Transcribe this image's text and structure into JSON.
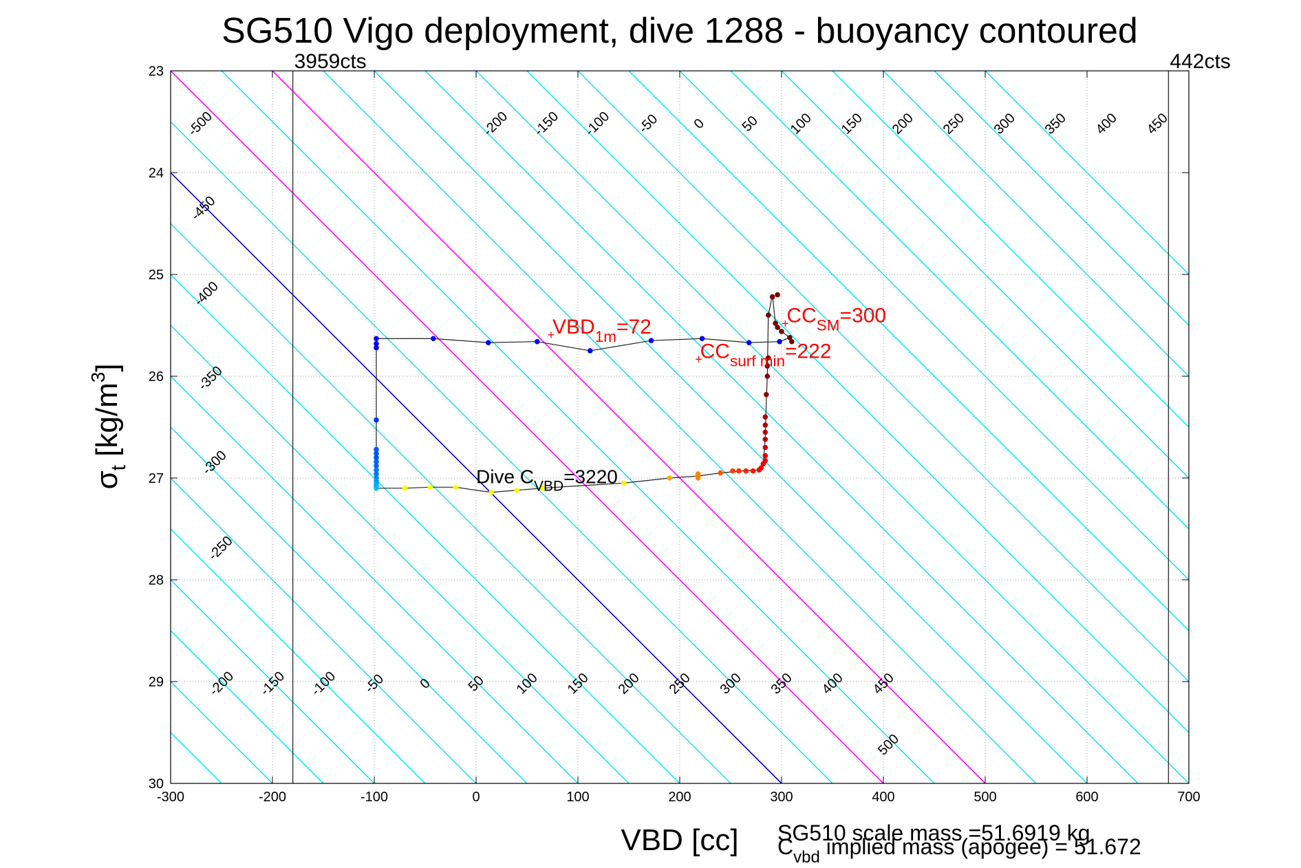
{
  "chart_data": {
    "type": "scatter",
    "title": "SG510 Vigo deployment, dive 1288 - buoyancy contoured",
    "xlabel": "VBD [cc]",
    "ylabel": {
      "main": "σ",
      "sub": "t",
      "unit": " [kg/m",
      "sup": "3",
      "close": "]"
    },
    "xlim": [
      -300,
      700
    ],
    "ylim": [
      23,
      30
    ],
    "y_reversed": true,
    "grid": "dotted",
    "x_ticks": [
      "-300",
      "-200",
      "-100",
      "0",
      "100",
      "200",
      "300",
      "400",
      "500",
      "600",
      "700"
    ],
    "y_ticks": [
      "23",
      "24",
      "25",
      "26",
      "27",
      "28",
      "29",
      "30"
    ],
    "vbd_limits": [
      {
        "x": -180,
        "label": "3959cts"
      },
      {
        "x": 680,
        "label": "442cts"
      }
    ],
    "contours": {
      "slope_cc_per_unit": 100,
      "levels": [
        -500,
        -450,
        -400,
        -350,
        -300,
        -250,
        -200,
        -150,
        -100,
        -50,
        0,
        50,
        100,
        150,
        200,
        250,
        300,
        350,
        400,
        450,
        500
      ],
      "highlight_blue": [
        0
      ],
      "highlight_magenta": [
        100,
        200
      ],
      "color_default": "#00e5ee",
      "color_blue": "#0000dd",
      "color_magenta": "#ff00ff",
      "labels_top": [
        {
          "level": "-500",
          "x": -268,
          "y": 23.55
        },
        {
          "level": "-450",
          "x": -265,
          "y": 24.38
        },
        {
          "level": "-400",
          "x": -262,
          "y": 25.22
        },
        {
          "level": "-350",
          "x": -258,
          "y": 26.05
        },
        {
          "level": "-300",
          "x": -254,
          "y": 26.88
        },
        {
          "level": "-250",
          "x": -248,
          "y": 27.72
        },
        {
          "level": "-200",
          "x": 22,
          "y": 23.55
        },
        {
          "level": "-150",
          "x": 72,
          "y": 23.55
        },
        {
          "level": "-100",
          "x": 122,
          "y": 23.55
        },
        {
          "level": "-50",
          "x": 172,
          "y": 23.55
        },
        {
          "level": "0",
          "x": 222,
          "y": 23.55
        },
        {
          "level": "50",
          "x": 272,
          "y": 23.55
        },
        {
          "level": "100",
          "x": 322,
          "y": 23.55
        },
        {
          "level": "150",
          "x": 372,
          "y": 23.55
        },
        {
          "level": "200",
          "x": 422,
          "y": 23.55
        },
        {
          "level": "250",
          "x": 472,
          "y": 23.55
        },
        {
          "level": "300",
          "x": 522,
          "y": 23.55
        },
        {
          "level": "350",
          "x": 572,
          "y": 23.55
        },
        {
          "level": "400",
          "x": 622,
          "y": 23.55
        },
        {
          "level": "450",
          "x": 672,
          "y": 23.55
        }
      ],
      "labels_bottom": [
        {
          "level": "-200",
          "x": -247,
          "y": 29.05
        },
        {
          "level": "-150",
          "x": -197,
          "y": 29.05
        },
        {
          "level": "-100",
          "x": -147,
          "y": 29.05
        },
        {
          "level": "-50",
          "x": -97,
          "y": 29.05
        },
        {
          "level": "0",
          "x": -47,
          "y": 29.05
        },
        {
          "level": "50",
          "x": 3,
          "y": 29.05
        },
        {
          "level": "100",
          "x": 53,
          "y": 29.05
        },
        {
          "level": "150",
          "x": 103,
          "y": 29.05
        },
        {
          "level": "200",
          "x": 153,
          "y": 29.05
        },
        {
          "level": "250",
          "x": 203,
          "y": 29.05
        },
        {
          "level": "300",
          "x": 253,
          "y": 29.05
        },
        {
          "level": "350",
          "x": 303,
          "y": 29.05
        },
        {
          "level": "400",
          "x": 353,
          "y": 29.05
        },
        {
          "level": "450",
          "x": 403,
          "y": 29.05
        },
        {
          "level": "500",
          "x": 408,
          "y": 29.65
        }
      ]
    },
    "profile_line": [
      [
        -98,
        25.63
      ],
      [
        -98,
        27.1
      ],
      [
        -70,
        27.1
      ],
      [
        -45,
        27.09
      ],
      [
        -20,
        27.09
      ],
      [
        0,
        27.12
      ],
      [
        15,
        27.14
      ],
      [
        40,
        27.12
      ],
      [
        65,
        27.1
      ],
      [
        95,
        27.08
      ],
      [
        145,
        27.05
      ],
      [
        190,
        27.0
      ],
      [
        218,
        26.98
      ],
      [
        240,
        26.95
      ],
      [
        262,
        26.93
      ],
      [
        278,
        26.92
      ],
      [
        282,
        26.88
      ],
      [
        284,
        26.6
      ],
      [
        285,
        26.25
      ],
      [
        286,
        26.0
      ],
      [
        287,
        25.4
      ],
      [
        291,
        25.2
      ],
      [
        294,
        25.48
      ],
      [
        300,
        25.56
      ],
      [
        308,
        25.62
      ],
      [
        298,
        25.66
      ],
      [
        268,
        25.67
      ],
      [
        222,
        25.63
      ],
      [
        172,
        25.65
      ],
      [
        112,
        25.75
      ],
      [
        60,
        25.66
      ],
      [
        12,
        25.67
      ],
      [
        -42,
        25.63
      ],
      [
        -98,
        25.63
      ]
    ],
    "points": [
      {
        "x": -98,
        "y": 25.63,
        "color": "#0000ff"
      },
      {
        "x": -98,
        "y": 25.68,
        "color": "#0000ff"
      },
      {
        "x": -98,
        "y": 25.72,
        "color": "#0000ff"
      },
      {
        "x": -42,
        "y": 25.63,
        "color": "#0000ff"
      },
      {
        "x": 12,
        "y": 25.67,
        "color": "#0000ff"
      },
      {
        "x": 60,
        "y": 25.66,
        "color": "#0000ff"
      },
      {
        "x": 112,
        "y": 25.75,
        "color": "#0000ff"
      },
      {
        "x": 172,
        "y": 25.65,
        "color": "#0000ff"
      },
      {
        "x": 222,
        "y": 25.63,
        "color": "#0000ff"
      },
      {
        "x": 268,
        "y": 25.67,
        "color": "#0000ff"
      },
      {
        "x": 298,
        "y": 25.66,
        "color": "#0000ff"
      },
      {
        "x": -98,
        "y": 26.43,
        "color": "#0033ff"
      },
      {
        "x": -98,
        "y": 26.72,
        "color": "#0055ff"
      },
      {
        "x": -98,
        "y": 26.76,
        "color": "#0055ff"
      },
      {
        "x": -98,
        "y": 26.8,
        "color": "#0055ff"
      },
      {
        "x": -98,
        "y": 26.84,
        "color": "#0066ff"
      },
      {
        "x": -98,
        "y": 26.88,
        "color": "#0066ff"
      },
      {
        "x": -98,
        "y": 26.92,
        "color": "#0077ff"
      },
      {
        "x": -98,
        "y": 26.96,
        "color": "#0077ff"
      },
      {
        "x": -98,
        "y": 27.0,
        "color": "#0088ff"
      },
      {
        "x": -98,
        "y": 27.03,
        "color": "#0099ff"
      },
      {
        "x": -98,
        "y": 27.06,
        "color": "#00aaff"
      },
      {
        "x": -98,
        "y": 27.08,
        "color": "#00aaff"
      },
      {
        "x": -98,
        "y": 27.1,
        "color": "#00bbff"
      },
      {
        "x": -70,
        "y": 27.1,
        "color": "#ffff00"
      },
      {
        "x": -45,
        "y": 27.09,
        "color": "#ffff00"
      },
      {
        "x": -20,
        "y": 27.09,
        "color": "#ffff00"
      },
      {
        "x": 15,
        "y": 27.14,
        "color": "#ffff00"
      },
      {
        "x": 40,
        "y": 27.12,
        "color": "#ffff00"
      },
      {
        "x": 65,
        "y": 27.1,
        "color": "#ffff00"
      },
      {
        "x": 145,
        "y": 27.05,
        "color": "#ffee00"
      },
      {
        "x": 190,
        "y": 27.0,
        "color": "#ffaa00"
      },
      {
        "x": 218,
        "y": 26.96,
        "color": "#ff8800"
      },
      {
        "x": 218,
        "y": 26.98,
        "color": "#ff8800"
      },
      {
        "x": 218,
        "y": 27.0,
        "color": "#ff8800"
      },
      {
        "x": 240,
        "y": 26.95,
        "color": "#ff5500"
      },
      {
        "x": 252,
        "y": 26.93,
        "color": "#ff4400"
      },
      {
        "x": 258,
        "y": 26.93,
        "color": "#ff3300"
      },
      {
        "x": 265,
        "y": 26.93,
        "color": "#ff2200"
      },
      {
        "x": 272,
        "y": 26.93,
        "color": "#ff1100"
      },
      {
        "x": 278,
        "y": 26.92,
        "color": "#ff0000"
      },
      {
        "x": 280,
        "y": 26.9,
        "color": "#ff0000"
      },
      {
        "x": 282,
        "y": 26.86,
        "color": "#ee0000"
      },
      {
        "x": 284,
        "y": 26.83,
        "color": "#ee0000"
      },
      {
        "x": 284,
        "y": 26.78,
        "color": "#dd0000"
      },
      {
        "x": 284,
        "y": 26.7,
        "color": "#cc0000"
      },
      {
        "x": 284,
        "y": 26.62,
        "color": "#bb0000"
      },
      {
        "x": 284,
        "y": 26.55,
        "color": "#bb0000"
      },
      {
        "x": 284,
        "y": 26.48,
        "color": "#aa0000"
      },
      {
        "x": 284,
        "y": 26.4,
        "color": "#aa0000"
      },
      {
        "x": 285,
        "y": 26.18,
        "color": "#990000"
      },
      {
        "x": 286,
        "y": 26.0,
        "color": "#880000"
      },
      {
        "x": 286,
        "y": 25.9,
        "color": "#880000"
      },
      {
        "x": 287,
        "y": 25.82,
        "color": "#880000"
      },
      {
        "x": 287,
        "y": 25.4,
        "color": "#770000"
      },
      {
        "x": 291,
        "y": 25.22,
        "color": "#770000"
      },
      {
        "x": 296,
        "y": 25.2,
        "color": "#770000"
      },
      {
        "x": 294,
        "y": 25.48,
        "color": "#770000"
      },
      {
        "x": 296,
        "y": 25.52,
        "color": "#770000"
      },
      {
        "x": 300,
        "y": 25.56,
        "color": "#770000"
      },
      {
        "x": 308,
        "y": 25.62,
        "color": "#770000"
      },
      {
        "x": 310,
        "y": 25.66,
        "color": "#770000"
      }
    ],
    "annotations": [
      {
        "color": "red",
        "x": 75,
        "y": 25.58,
        "size": 30,
        "main": "VBD",
        "sub": "1m",
        "rest": "=72"
      },
      {
        "color": "red",
        "x": 305,
        "y": 25.47,
        "size": 30,
        "main": "CC",
        "sub": "SM",
        "rest": "=300"
      },
      {
        "color": "red",
        "x": 220,
        "y": 25.82,
        "size": 30,
        "main": "CC",
        "sub": "surf min",
        "rest": "=222"
      },
      {
        "color": "black",
        "x": 0,
        "y": 27.05,
        "size": 28,
        "main": "Dive C",
        "sub": "VBD",
        "rest": "=3220"
      }
    ],
    "footnote_scale_mass": "SG510 scale mass =51.6919 kg",
    "footnote_implied_mass": {
      "main": "C",
      "sub": "vbd",
      "rest": " implied mass (apogee) = 51.672"
    }
  }
}
